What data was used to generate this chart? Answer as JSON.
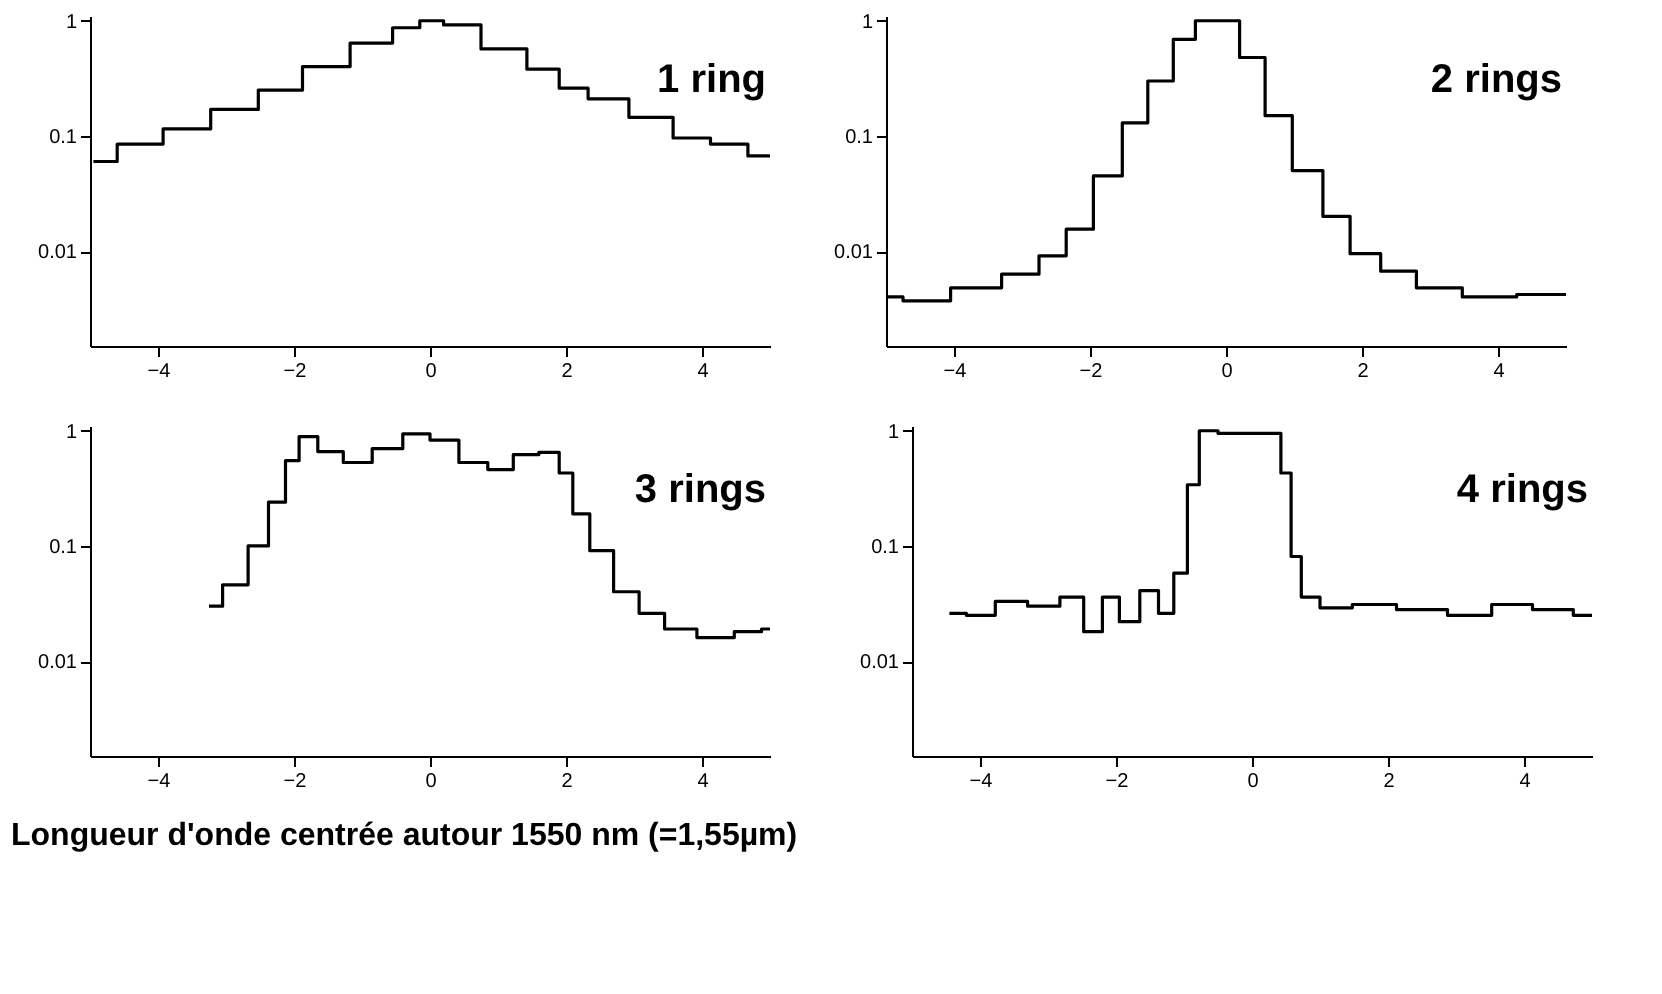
{
  "chart_data": [
    {
      "type": "step",
      "title": "1 ring",
      "color": "#000000",
      "log": "y",
      "grid": false,
      "xlim": [
        -5,
        5
      ],
      "xticks": [
        -4,
        -2,
        0,
        2,
        4
      ],
      "ylim": [
        0.0015,
        1.1
      ],
      "yticks": [
        0.01,
        0.1,
        1
      ],
      "x": [
        -4.95,
        -4.25,
        -3.6,
        -2.85,
        -2.2,
        -1.55,
        -0.8,
        -0.3,
        0.0,
        0.4,
        1.1,
        1.75,
        2.05,
        2.6,
        3.25,
        3.9,
        4.35,
        5.0
      ],
      "values": [
        0.06,
        0.085,
        0.115,
        0.17,
        0.25,
        0.4,
        0.64,
        0.87,
        1.0,
        0.92,
        0.57,
        0.38,
        0.26,
        0.21,
        0.145,
        0.096,
        0.085,
        0.067
      ]
    },
    {
      "type": "step",
      "title": "2 rings",
      "color": "#000000",
      "log": "y",
      "grid": false,
      "xlim": [
        -5,
        5
      ],
      "xticks": [
        -4,
        -2,
        0,
        2,
        4
      ],
      "ylim": [
        0.0015,
        1.1
      ],
      "yticks": [
        0.01,
        0.1,
        1
      ],
      "x": [
        -5.0,
        -4.5,
        -3.6,
        -3.0,
        -2.5,
        -2.2,
        -1.7,
        -1.35,
        -0.95,
        -0.6,
        -0.3,
        0.0,
        0.4,
        0.75,
        1.2,
        1.65,
        2.0,
        2.55,
        3.05,
        3.9,
        4.65,
        5.0
      ],
      "values": [
        0.004,
        0.0037,
        0.0048,
        0.0063,
        0.0091,
        0.0155,
        0.045,
        0.13,
        0.3,
        0.69,
        1.0,
        1.0,
        0.48,
        0.15,
        0.05,
        0.02,
        0.0095,
        0.0067,
        0.0048,
        0.004,
        0.0042,
        0.0042
      ]
    },
    {
      "type": "step",
      "title": "3 rings",
      "color": "#000000",
      "log": "y",
      "grid": false,
      "xlim": [
        -5,
        5
      ],
      "xticks": [
        -4,
        -2,
        0,
        2,
        4
      ],
      "ylim": [
        0.0015,
        1.1
      ],
      "yticks": [
        0.01,
        0.1,
        1
      ],
      "xlabel": "Longueur d'onde centrée autour 1550 nm (=1,55µm)",
      "x": [
        -3.25,
        -2.85,
        -2.5,
        -2.25,
        -2.0,
        -1.85,
        -1.45,
        -1.1,
        -0.6,
        -0.2,
        0.2,
        0.65,
        1.05,
        1.4,
        1.8,
        2.0,
        2.2,
        2.5,
        2.9,
        3.25,
        3.65,
        4.2,
        4.75,
        5.0
      ],
      "values": [
        0.03,
        0.046,
        0.1,
        0.24,
        0.55,
        0.89,
        0.66,
        0.53,
        0.7,
        0.94,
        0.83,
        0.53,
        0.46,
        0.62,
        0.65,
        0.43,
        0.19,
        0.091,
        0.04,
        0.026,
        0.019,
        0.016,
        0.018,
        0.019
      ]
    },
    {
      "type": "step",
      "title": "4 rings",
      "color": "#000000",
      "log": "y",
      "grid": false,
      "xlim": [
        -5,
        5
      ],
      "xticks": [
        -4,
        -2,
        0,
        2,
        4
      ],
      "ylim": [
        0.0015,
        1.1
      ],
      "yticks": [
        0.01,
        0.1,
        1
      ],
      "x": [
        -4.45,
        -3.95,
        -3.6,
        -3.0,
        -2.65,
        -2.3,
        -2.1,
        -1.8,
        -1.5,
        -1.25,
        -1.05,
        -0.85,
        -0.7,
        -0.3,
        0.35,
        0.5,
        0.65,
        0.8,
        1.2,
        1.75,
        2.5,
        3.25,
        3.8,
        4.45,
        5.0
      ],
      "values": [
        0.026,
        0.025,
        0.033,
        0.03,
        0.036,
        0.018,
        0.036,
        0.022,
        0.041,
        0.026,
        0.058,
        0.34,
        1.0,
        0.95,
        0.95,
        0.43,
        0.081,
        0.036,
        0.029,
        0.031,
        0.028,
        0.025,
        0.031,
        0.028,
        0.025
      ]
    }
  ]
}
